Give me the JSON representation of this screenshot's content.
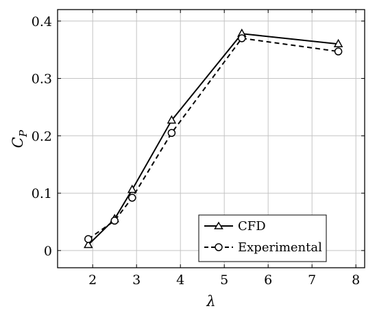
{
  "chart_data": {
    "type": "line",
    "title": "",
    "xlabel": "λ",
    "ylabel": "C",
    "ylabel_subscript": "P",
    "xlim": [
      1.2,
      8.2
    ],
    "ylim": [
      -0.03,
      0.42
    ],
    "x_ticks": [
      2,
      3,
      4,
      5,
      6,
      7,
      8
    ],
    "x_tick_labels": [
      "2",
      "3",
      "4",
      "5",
      "6",
      "7",
      "8"
    ],
    "y_ticks": [
      0,
      0.1,
      0.2,
      0.3,
      0.4
    ],
    "y_tick_labels": [
      "0",
      "0.1",
      "0.2",
      "0.3",
      "0.4"
    ],
    "grid": true,
    "legend_position": "bottom-right",
    "series": [
      {
        "name": "CFD",
        "line_style": "solid",
        "marker": "triangle",
        "color": "#000000",
        "x": [
          1.9,
          2.5,
          2.9,
          3.8,
          5.4,
          7.6
        ],
        "y": [
          0.01,
          0.055,
          0.106,
          0.227,
          0.378,
          0.36
        ]
      },
      {
        "name": "Experimental",
        "line_style": "dashed",
        "marker": "circle",
        "color": "#000000",
        "x": [
          1.9,
          2.5,
          2.9,
          3.8,
          5.4,
          7.6
        ],
        "y": [
          0.02,
          0.052,
          0.092,
          0.205,
          0.37,
          0.347
        ]
      }
    ]
  }
}
